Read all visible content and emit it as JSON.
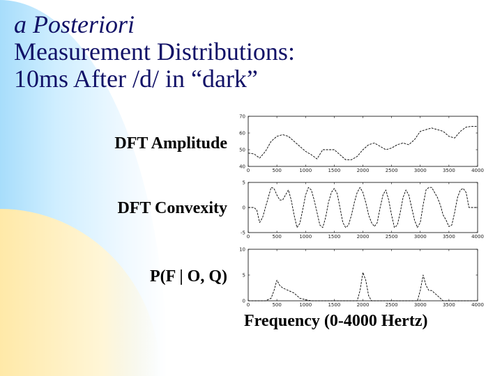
{
  "slide": {
    "title_line1": "a Posteriori",
    "title_line2": "Measurement Distributions:",
    "title_line3": "10ms After /d/ in “dark”",
    "label_amplitude": "DFT Amplitude",
    "label_convexity": "DFT Convexity",
    "label_probability": "P(F | O, Q)",
    "xaxis_label": "Frequency (0-4000 Hertz)"
  },
  "chart_data": [
    {
      "type": "line",
      "name": "DFT Amplitude",
      "ylim": [
        40,
        70
      ],
      "yticks": [
        40,
        50,
        60,
        70
      ],
      "ytick_labels": [
        "40",
        "50",
        "60",
        "70"
      ],
      "xlim": [
        0,
        4000
      ],
      "xticks": [
        0,
        500,
        1000,
        1500,
        2000,
        2500,
        3000,
        3500,
        4000
      ],
      "x": [
        0,
        100,
        200,
        300,
        400,
        500,
        600,
        700,
        800,
        900,
        1000,
        1100,
        1200,
        1300,
        1400,
        1500,
        1600,
        1700,
        1800,
        1900,
        2000,
        2100,
        2200,
        2300,
        2400,
        2500,
        2600,
        2700,
        2800,
        2900,
        3000,
        3100,
        3200,
        3300,
        3400,
        3500,
        3600,
        3700,
        3800,
        3900,
        4000
      ],
      "values": [
        48,
        47.5,
        45,
        49,
        55,
        58,
        59,
        58,
        55,
        52,
        49,
        47,
        44.5,
        50,
        50,
        50,
        47,
        44,
        44,
        46,
        50,
        53,
        54,
        52,
        50,
        51,
        53,
        54,
        53,
        56,
        61,
        62,
        63,
        62,
        61,
        58,
        57,
        61,
        63.5,
        64,
        64
      ]
    },
    {
      "type": "line",
      "name": "DFT Convexity",
      "ylim": [
        -5,
        5
      ],
      "yticks": [
        -5,
        0,
        5
      ],
      "ytick_labels": [
        "-5",
        "0",
        "5"
      ],
      "xlim": [
        0,
        4000
      ],
      "xticks": [
        0,
        500,
        1000,
        1500,
        2000,
        2500,
        3000,
        3500,
        4000
      ],
      "x": [
        0,
        100,
        150,
        200,
        250,
        300,
        350,
        400,
        450,
        500,
        550,
        600,
        650,
        700,
        750,
        800,
        850,
        900,
        950,
        1000,
        1050,
        1100,
        1150,
        1200,
        1250,
        1300,
        1350,
        1400,
        1450,
        1500,
        1550,
        1600,
        1650,
        1700,
        1750,
        1800,
        1850,
        1900,
        1950,
        2000,
        2050,
        2100,
        2150,
        2200,
        2250,
        2300,
        2350,
        2400,
        2450,
        2500,
        2550,
        2600,
        2650,
        2700,
        2750,
        2800,
        2850,
        2900,
        2950,
        3000,
        3050,
        3100,
        3150,
        3200,
        3250,
        3300,
        3350,
        3400,
        3450,
        3500,
        3550,
        3600,
        3650,
        3700,
        3750,
        3800,
        3850,
        3900,
        3950,
        4000
      ],
      "values": [
        0,
        0,
        -0.5,
        -3,
        -2,
        0,
        2,
        4,
        3.8,
        2.5,
        1.5,
        1.5,
        2.5,
        3.5,
        1.5,
        -1.5,
        -4,
        -3.2,
        -0.5,
        2.5,
        4,
        3.5,
        1.5,
        -1,
        -3.5,
        -4,
        -2,
        1,
        3,
        3.8,
        2.8,
        0,
        -3,
        -4,
        -3.5,
        -1.5,
        1,
        3,
        4,
        3,
        1,
        -1.5,
        -3,
        -3.8,
        -3,
        0,
        2.5,
        3.5,
        1.5,
        -1.5,
        -4,
        -3.5,
        -1,
        2,
        3.5,
        2.5,
        0,
        -2.5,
        -4,
        -3,
        0.5,
        3.5,
        4,
        4,
        3,
        2,
        0.5,
        -1.5,
        -2.5,
        -3.8,
        -3.5,
        -1,
        2,
        3.5,
        3.8,
        3,
        0,
        0,
        0,
        0
      ]
    },
    {
      "type": "line",
      "name": "P(F | O, Q)",
      "ylim": [
        0,
        10
      ],
      "yticks": [
        0,
        5,
        10
      ],
      "ytick_labels": [
        "0",
        "5",
        "10"
      ],
      "xlim": [
        0,
        4000
      ],
      "xticks": [
        0,
        500,
        1000,
        1500,
        2000,
        2500,
        3000,
        3500,
        4000
      ],
      "x": [
        0,
        300,
        400,
        450,
        500,
        550,
        600,
        700,
        800,
        900,
        1000,
        1100,
        1200,
        1300,
        1900,
        1950,
        2000,
        2050,
        2100,
        2150,
        2200,
        2950,
        3000,
        3050,
        3100,
        3150,
        3200,
        3300,
        3400,
        3500,
        4000
      ],
      "values": [
        0,
        0,
        0.5,
        2,
        4,
        3,
        2.5,
        2,
        1.5,
        0.5,
        0.2,
        0,
        0,
        0,
        0,
        2,
        5.5,
        4,
        1,
        0,
        0,
        0,
        2,
        5,
        3,
        2,
        2,
        1,
        0,
        0,
        0
      ],
      "xtick_labels": [
        "0",
        "500",
        "1000",
        "1500",
        "2000",
        "2500",
        "3000",
        "3500",
        "4000"
      ]
    }
  ]
}
